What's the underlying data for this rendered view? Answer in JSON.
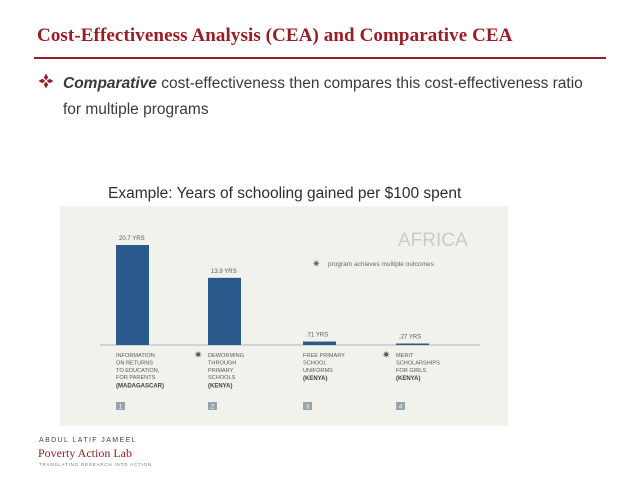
{
  "slide": {
    "title": "Cost-Effectiveness Analysis (CEA) and Comparative CEA",
    "bullet_emphasis": "Comparative",
    "bullet_text": " cost-effectiveness then compares this cost-effectiveness ratio for multiple programs",
    "example_caption": "Example: Years of schooling gained per $100 spent"
  },
  "logo": {
    "line1": "ABDUL LATIF JAMEEL",
    "line2": "Poverty Action Lab",
    "line3": "TRANSLATING RESEARCH INTO ACTION"
  },
  "colors": {
    "accent": "#9b1c22",
    "bar": "#2a5a8c",
    "panel": "#f1f2ec",
    "watermark": "#c9ccc6"
  },
  "chart_data": {
    "type": "bar",
    "watermark": "AFRICA",
    "legend_text": "program achieves multiple outcomes",
    "value_unit": "YRS",
    "ylim": [
      0,
      20.7
    ],
    "bars": [
      {
        "number": "1",
        "value": 20.7,
        "value_label": "20.7 YRS",
        "multiple_outcomes": false,
        "label_lines": [
          "INFORMATION",
          "ON RETURNS",
          "TO EDUCATION,",
          "FOR PARENTS"
        ],
        "country": "(MADAGASCAR)"
      },
      {
        "number": "2",
        "value": 13.9,
        "value_label": "13.9 YRS",
        "multiple_outcomes": true,
        "label_lines": [
          "DEWORMING",
          "THROUGH",
          "PRIMARY",
          "SCHOOLS"
        ],
        "country": "(KENYA)"
      },
      {
        "number": "3",
        "value": 0.71,
        "value_label": ".71 YRS",
        "multiple_outcomes": false,
        "label_lines": [
          "FREE PRIMARY",
          "SCHOOL",
          "UNIFORMS"
        ],
        "country": "(KENYA)"
      },
      {
        "number": "4",
        "value": 0.27,
        "value_label": ".27 YRS",
        "multiple_outcomes": true,
        "label_lines": [
          "MERIT",
          "SCHOLARSHIPS",
          "FOR GIRLS"
        ],
        "country": "(KENYA)"
      }
    ]
  }
}
